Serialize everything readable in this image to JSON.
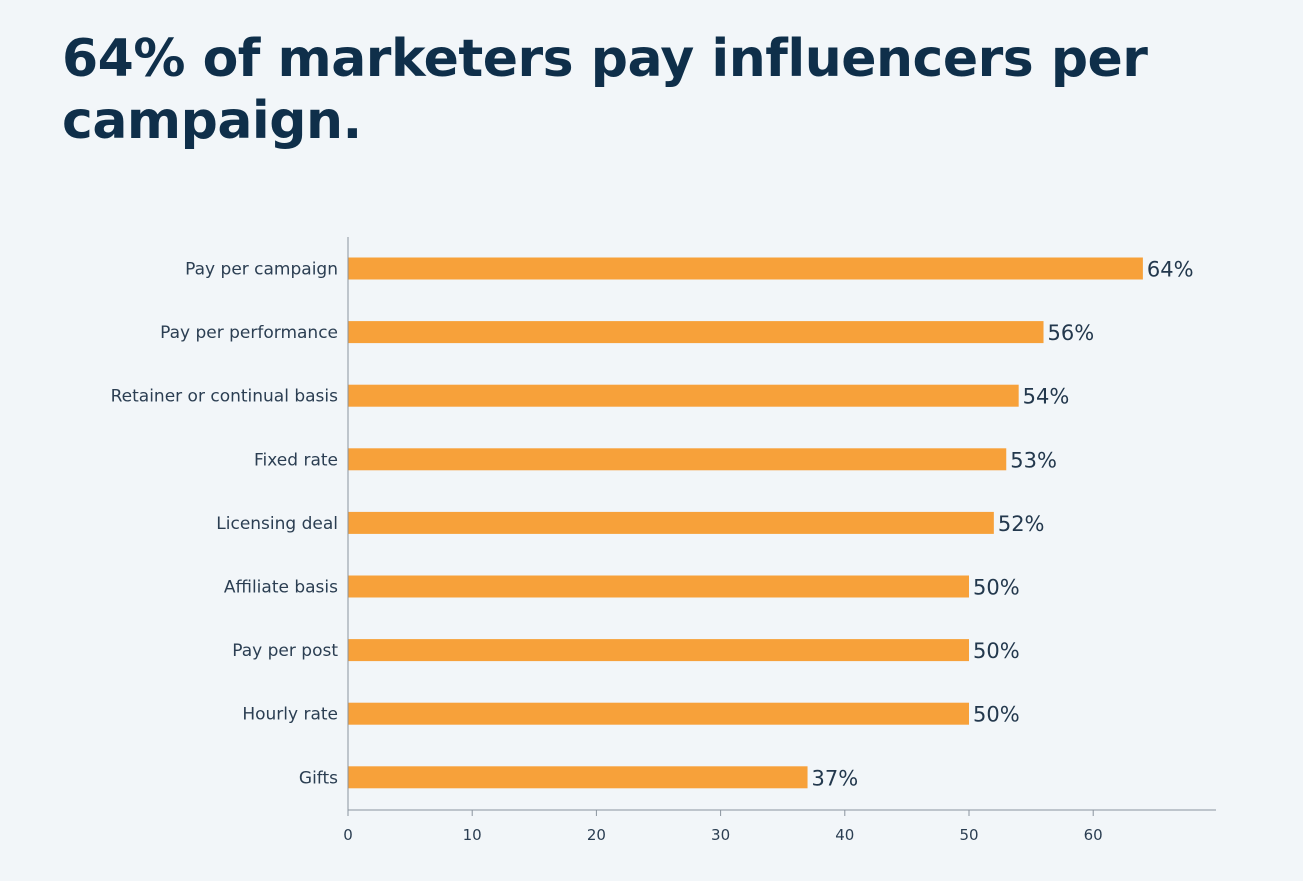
{
  "colors": {
    "background": "#f2f6f9",
    "title": "#0f2f4a",
    "bar": "#f7a13a",
    "axis": "#8a949e",
    "text": "#2b3e52"
  },
  "chart_data": {
    "type": "bar",
    "orientation": "horizontal",
    "title": "64% of marketers pay influencers per campaign.",
    "xlabel": "",
    "ylabel": "",
    "categories": [
      "Pay per campaign",
      "Pay per performance",
      "Retainer or continual basis",
      "Fixed rate",
      "Licensing deal",
      "Affiliate basis",
      "Pay per post",
      "Hourly rate",
      "Gifts"
    ],
    "values": [
      64,
      56,
      54,
      53,
      52,
      50,
      50,
      50,
      37
    ],
    "data_labels": [
      "64%",
      "56%",
      "54%",
      "53%",
      "52%",
      "50%",
      "50%",
      "50%",
      "37%"
    ],
    "xlim": [
      0,
      70
    ],
    "x_ticks": [
      0,
      10,
      20,
      30,
      40,
      50,
      60
    ],
    "grid": false,
    "legend": "none"
  }
}
